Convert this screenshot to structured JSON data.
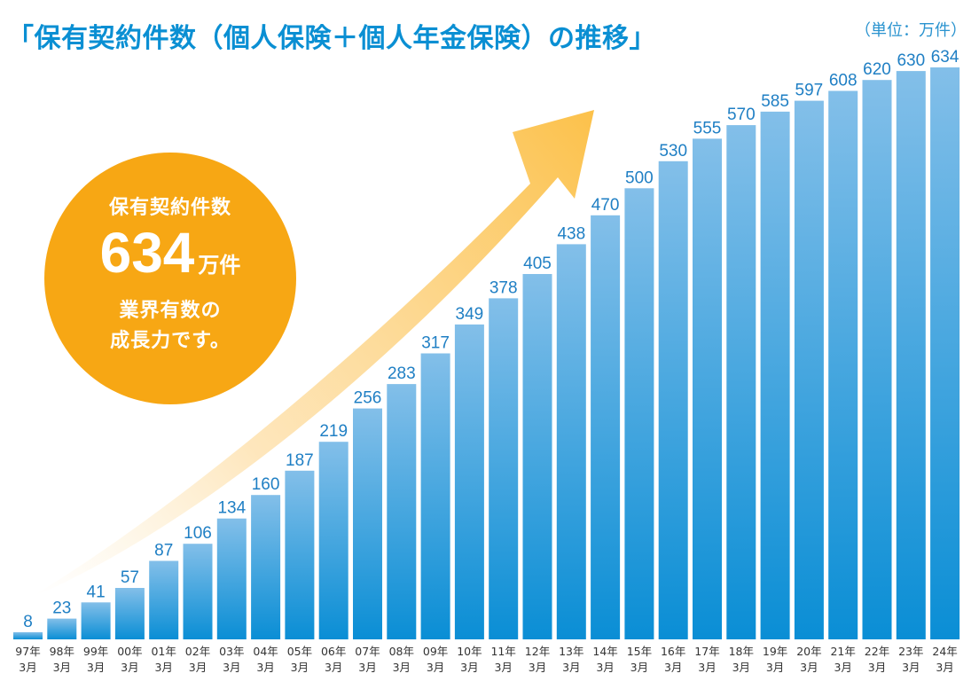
{
  "header": {
    "title": "「保有契約件数（個人保険＋個人年金保険）の推移」",
    "unit": "（単位：万件）"
  },
  "badge": {
    "line1": "保有契約件数",
    "number": "634",
    "number_unit": "万件",
    "line3": "業界有数の",
    "line4": "成長力です。"
  },
  "colors": {
    "title": "#0a8fd3",
    "bar_top": "#83bfe9",
    "bar_bottom": "#0a8ed5",
    "badge": "#f7a714",
    "arrow": "#fcc14a"
  },
  "chart_data": {
    "type": "bar",
    "categories": [
      [
        "97年",
        "3月"
      ],
      [
        "98年",
        "3月"
      ],
      [
        "99年",
        "3月"
      ],
      [
        "00年",
        "3月"
      ],
      [
        "01年",
        "3月"
      ],
      [
        "02年",
        "3月"
      ],
      [
        "03年",
        "3月"
      ],
      [
        "04年",
        "3月"
      ],
      [
        "05年",
        "3月"
      ],
      [
        "06年",
        "3月"
      ],
      [
        "07年",
        "3月"
      ],
      [
        "08年",
        "3月"
      ],
      [
        "09年",
        "3月"
      ],
      [
        "10年",
        "3月"
      ],
      [
        "11年",
        "3月"
      ],
      [
        "12年",
        "3月"
      ],
      [
        "13年",
        "3月"
      ],
      [
        "14年",
        "3月"
      ],
      [
        "15年",
        "3月"
      ],
      [
        "16年",
        "3月"
      ],
      [
        "17年",
        "3月"
      ],
      [
        "18年",
        "3月"
      ],
      [
        "19年",
        "3月"
      ],
      [
        "20年",
        "3月"
      ],
      [
        "21年",
        "3月"
      ],
      [
        "22年",
        "3月"
      ],
      [
        "23年",
        "3月"
      ],
      [
        "24年",
        "3月"
      ]
    ],
    "values": [
      8,
      23,
      41,
      57,
      87,
      106,
      134,
      160,
      187,
      219,
      256,
      283,
      317,
      349,
      378,
      405,
      438,
      470,
      500,
      530,
      555,
      570,
      585,
      597,
      608,
      620,
      630,
      634
    ],
    "title": "「保有契約件数（個人保険＋個人年金保険）の推移」",
    "ylabel": "（単位：万件）",
    "ylim": [
      0,
      634
    ],
    "grid": false,
    "legend": "none"
  }
}
